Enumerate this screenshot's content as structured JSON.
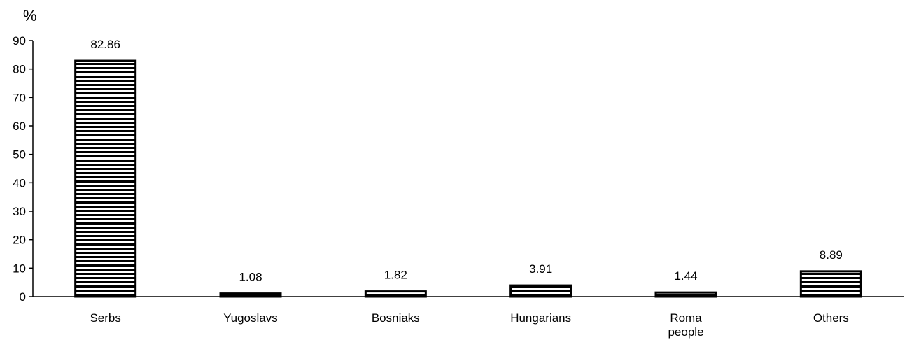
{
  "chart_data": {
    "type": "bar",
    "ylabel": "%",
    "categories": [
      [
        "Serbs"
      ],
      [
        "Yugoslavs"
      ],
      [
        "Bosniaks"
      ],
      [
        "Hungarians"
      ],
      [
        "Roma",
        "people"
      ],
      [
        "Others"
      ]
    ],
    "values": [
      82.86,
      1.08,
      1.82,
      3.91,
      1.44,
      8.89
    ],
    "value_labels": [
      "82.86",
      "1.08",
      "1.82",
      "3.91",
      "1.44",
      "8.89"
    ],
    "ylim": [
      0,
      90
    ],
    "yticks": [
      0,
      10,
      20,
      30,
      40,
      50,
      60,
      70,
      80,
      90
    ],
    "grid": false,
    "legend": "none",
    "bar_fill": "horizontal-stripes",
    "colors": {
      "stroke": "#000000",
      "fill": "#ffffff",
      "text": "#000000"
    }
  }
}
